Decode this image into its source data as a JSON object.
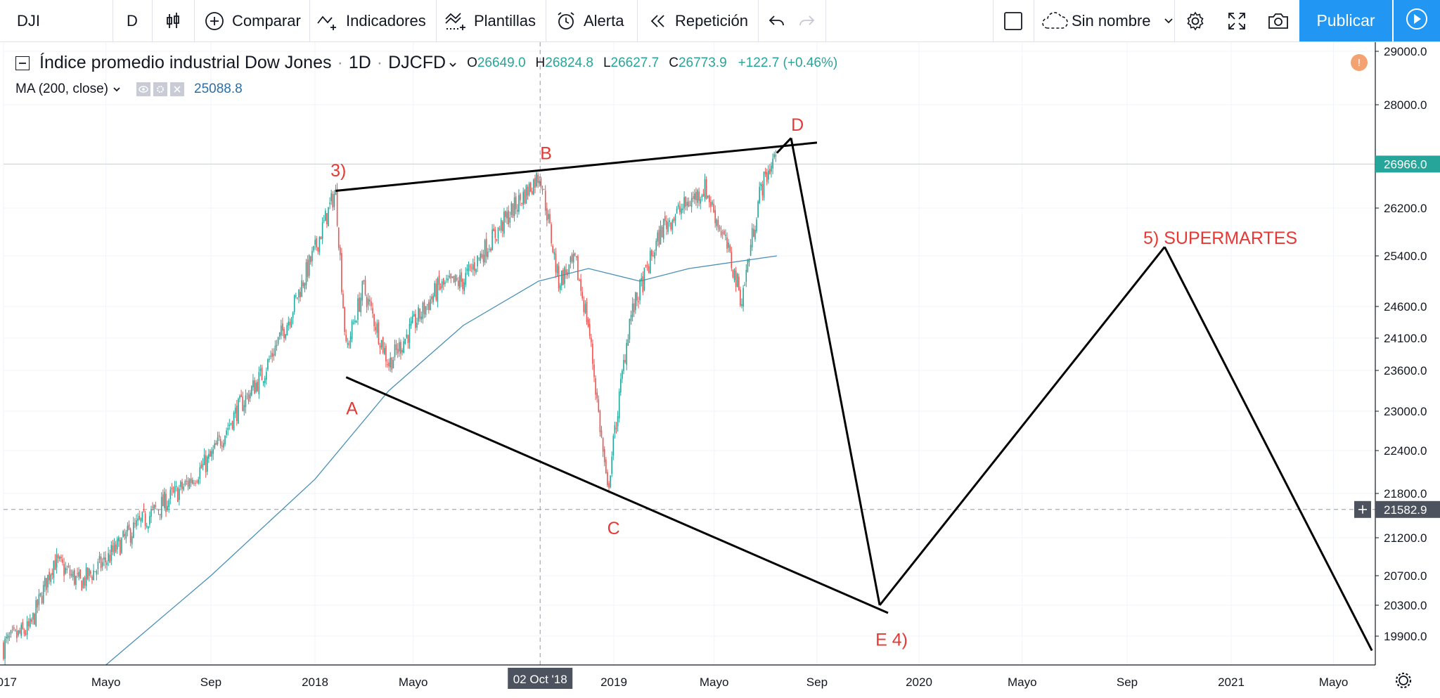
{
  "toolbar": {
    "symbol": "DJI",
    "interval": "D",
    "compare_label": "Comparar",
    "indicators_label": "Indicadores",
    "templates_label": "Plantillas",
    "alert_label": "Alerta",
    "replay_label": "Repetición",
    "layout_name": "Sin nombre",
    "publish_label": "Publicar"
  },
  "legend": {
    "title": "Índice promedio industrial Dow Jones",
    "dot": "·",
    "interval": "1D",
    "exchange": "DJCFD",
    "open_key": "O",
    "open": "26649.0",
    "high_key": "H",
    "high": "26824.8",
    "low_key": "L",
    "low": "26627.7",
    "close_key": "C",
    "close": "26773.9",
    "change": "+122.7 (+0.46%)",
    "ma_label": "MA (200, close)",
    "ma_value": "25088.8",
    "alert_icon": "!"
  },
  "colors": {
    "up": "#26a69a",
    "down": "#ef5350",
    "ma": "#4a90b8",
    "annotation": "#e53935",
    "accent": "#2196f3"
  },
  "chart_data": {
    "type": "candlestick",
    "x_labels": [
      "2017",
      "Mayo",
      "Sep",
      "2018",
      "Mayo",
      "2019",
      "Mayo",
      "Sep",
      "2020",
      "Mayo",
      "Sep",
      "2021",
      "Mayo"
    ],
    "crosshair_x_label": "02 Oct '18",
    "y_ticks": [
      "29000.0",
      "28000.0",
      "26200.0",
      "25400.0",
      "24600.0",
      "24100.0",
      "23600.0",
      "23000.0",
      "22400.0",
      "21800.0",
      "21200.0",
      "20700.0",
      "20300.0",
      "19900.0"
    ],
    "y_range": [
      19600,
      29000
    ],
    "last_price": "26966.0",
    "crosshair_price": "21582.9",
    "price_path": [
      [
        "2017-01-01",
        19800
      ],
      [
        "2017-02-01",
        20000
      ],
      [
        "2017-03-01",
        20900
      ],
      [
        "2017-04-01",
        20600
      ],
      [
        "2017-05-01",
        20900
      ],
      [
        "2017-06-01",
        21300
      ],
      [
        "2017-07-01",
        21600
      ],
      [
        "2017-08-01",
        21900
      ],
      [
        "2017-09-01",
        22300
      ],
      [
        "2017-10-01",
        23000
      ],
      [
        "2017-11-01",
        23550
      ],
      [
        "2017-12-01",
        24400
      ],
      [
        "2018-01-01",
        25500
      ],
      [
        "2018-01-26",
        26500
      ],
      [
        "2018-02-08",
        23900
      ],
      [
        "2018-03-01",
        24900
      ],
      [
        "2018-04-01",
        23700
      ],
      [
        "2018-05-01",
        24300
      ],
      [
        "2018-06-01",
        24900
      ],
      [
        "2018-07-01",
        25000
      ],
      [
        "2018-08-01",
        25600
      ],
      [
        "2018-09-01",
        26200
      ],
      [
        "2018-10-03",
        26800
      ],
      [
        "2018-10-25",
        25000
      ],
      [
        "2018-11-15",
        25300
      ],
      [
        "2018-12-01",
        24300
      ],
      [
        "2018-12-24",
        21800
      ],
      [
        "2019-01-20",
        24400
      ],
      [
        "2019-03-01",
        25900
      ],
      [
        "2019-04-20",
        26550
      ],
      [
        "2019-05-15",
        25600
      ],
      [
        "2019-06-03",
        24700
      ],
      [
        "2019-06-25",
        26500
      ],
      [
        "2019-07-15",
        27200
      ]
    ],
    "ma_path": [
      [
        "2017-05-01",
        19600
      ],
      [
        "2017-09-01",
        20700
      ],
      [
        "2018-01-01",
        22000
      ],
      [
        "2018-04-01",
        23300
      ],
      [
        "2018-07-01",
        24300
      ],
      [
        "2018-10-01",
        25000
      ],
      [
        "2018-12-01",
        25200
      ],
      [
        "2019-02-01",
        25000
      ],
      [
        "2019-04-01",
        25200
      ],
      [
        "2019-07-15",
        25400
      ]
    ],
    "drawings": [
      {
        "from": [
          "2018-01-26",
          26500
        ],
        "to": [
          "2019-09-01",
          27340
        ]
      },
      {
        "from": [
          "2018-02-08",
          23500
        ],
        "to": [
          "2019-11-25",
          20200
        ]
      },
      {
        "from": [
          "2019-07-15",
          27160
        ],
        "to": [
          "2019-08-01",
          27420
        ]
      },
      {
        "from": [
          "2019-08-01",
          27420
        ],
        "to": [
          "2019-11-15",
          20300
        ]
      },
      {
        "from": [
          "2019-11-15",
          20300
        ],
        "to": [
          "2020-10-15",
          25550
        ]
      },
      {
        "from": [
          "2020-10-15",
          25550
        ],
        "to": [
          "2021-06-15",
          19750
        ]
      }
    ],
    "annotations": [
      {
        "text": "3)",
        "at": [
          "2018-01-20",
          26750
        ]
      },
      {
        "text": "A",
        "at": [
          "2018-02-08",
          22950
        ]
      },
      {
        "text": "B",
        "at": [
          "2018-10-03",
          27050
        ]
      },
      {
        "text": "C",
        "at": [
          "2018-12-24",
          21250
        ]
      },
      {
        "text": "D",
        "at": [
          "2019-08-01",
          27550
        ]
      },
      {
        "text": "E 4)",
        "at": [
          "2019-11-10",
          19800
        ]
      },
      {
        "text": "5) SUPERMARTES",
        "at": [
          "2020-09-20",
          25600
        ]
      }
    ]
  }
}
